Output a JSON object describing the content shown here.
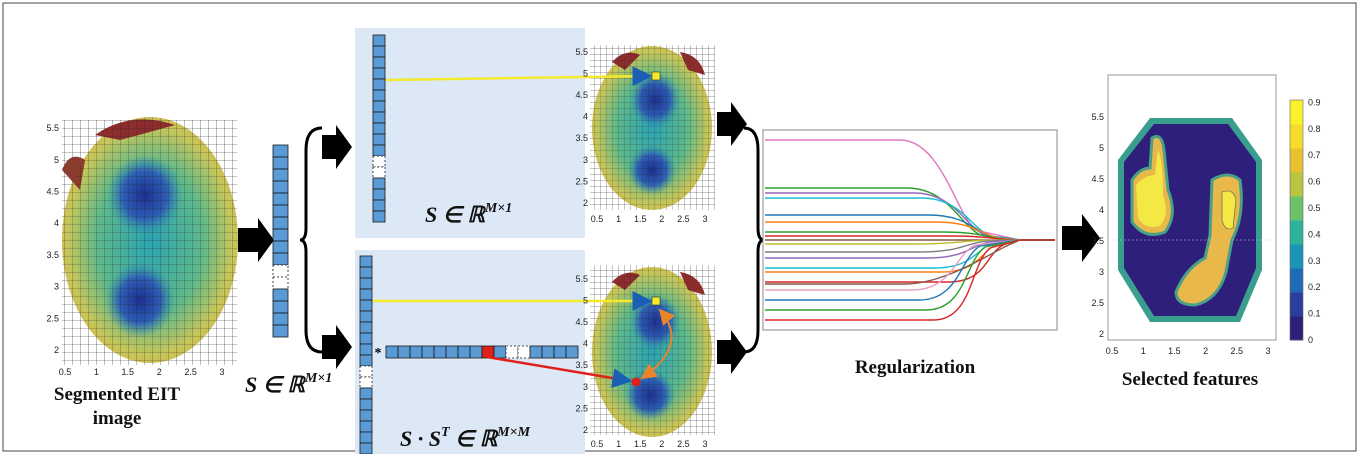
{
  "input": {
    "caption": [
      "Segmented EIT",
      "image"
    ],
    "plot": {
      "xticks": [
        "0.5",
        "1",
        "1.5",
        "2",
        "2.5",
        "3"
      ],
      "yticks": [
        "2",
        "2.5",
        "3",
        "3.5",
        "4",
        "4.5",
        "5",
        "5.5"
      ]
    }
  },
  "vector_label": {
    "base": "S ∈ ℝ",
    "sup": "M×1"
  },
  "top_panel": {
    "label": {
      "base": "S ∈ ℝ",
      "sup": "M×1"
    },
    "plot": {
      "xticks": [
        "0.5",
        "1",
        "1.5",
        "2",
        "2.5",
        "3"
      ],
      "yticks": [
        "2",
        "2.5",
        "3",
        "3.5",
        "4",
        "4.5",
        "5",
        "5.5"
      ]
    }
  },
  "bottom_panel": {
    "label": {
      "base": "S · S",
      "sup1": "T",
      "mid": " ∈ ℝ",
      "sup2": "M×M"
    },
    "operator": "*",
    "plot": {
      "xticks": [
        "0.5",
        "1",
        "1.5",
        "2",
        "2.5",
        "3"
      ],
      "yticks": [
        "2",
        "2.5",
        "3",
        "3.5",
        "4",
        "4.5",
        "5",
        "5.5"
      ]
    }
  },
  "regularization": {
    "caption": "Regularization"
  },
  "output": {
    "caption": "Selected features",
    "plot": {
      "xticks": [
        "0.5",
        "1",
        "1.5",
        "2",
        "2.5",
        "3"
      ],
      "yticks": [
        "2",
        "2.5",
        "3",
        "3.5",
        "4",
        "4.5",
        "5",
        "5.5"
      ]
    },
    "colorbar_ticks": [
      "0",
      "0.1",
      "0.2",
      "0.3",
      "0.4",
      "0.5",
      "0.6",
      "0.7",
      "0.8",
      "0.9"
    ]
  }
}
